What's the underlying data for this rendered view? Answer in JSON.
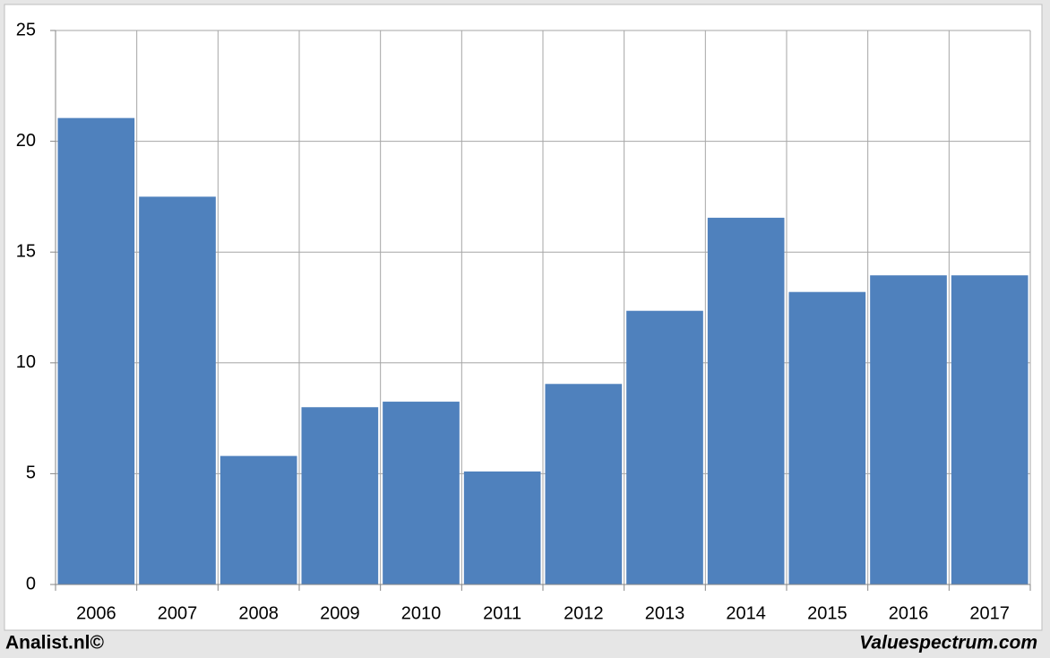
{
  "chart_data": {
    "type": "bar",
    "categories": [
      "2006",
      "2007",
      "2008",
      "2009",
      "2010",
      "2011",
      "2012",
      "2013",
      "2014",
      "2015",
      "2016",
      "2017"
    ],
    "values": [
      21.05,
      17.5,
      5.8,
      8.0,
      8.25,
      5.1,
      9.05,
      12.35,
      16.55,
      13.2,
      13.95,
      13.95
    ],
    "color": "#4f81bd",
    "ylim": [
      0,
      25
    ],
    "yticks": [
      0,
      5,
      10,
      15,
      20,
      25
    ],
    "grid": true
  },
  "footer": {
    "left": "Analist.nl©",
    "right": "Valuespectrum.com"
  }
}
